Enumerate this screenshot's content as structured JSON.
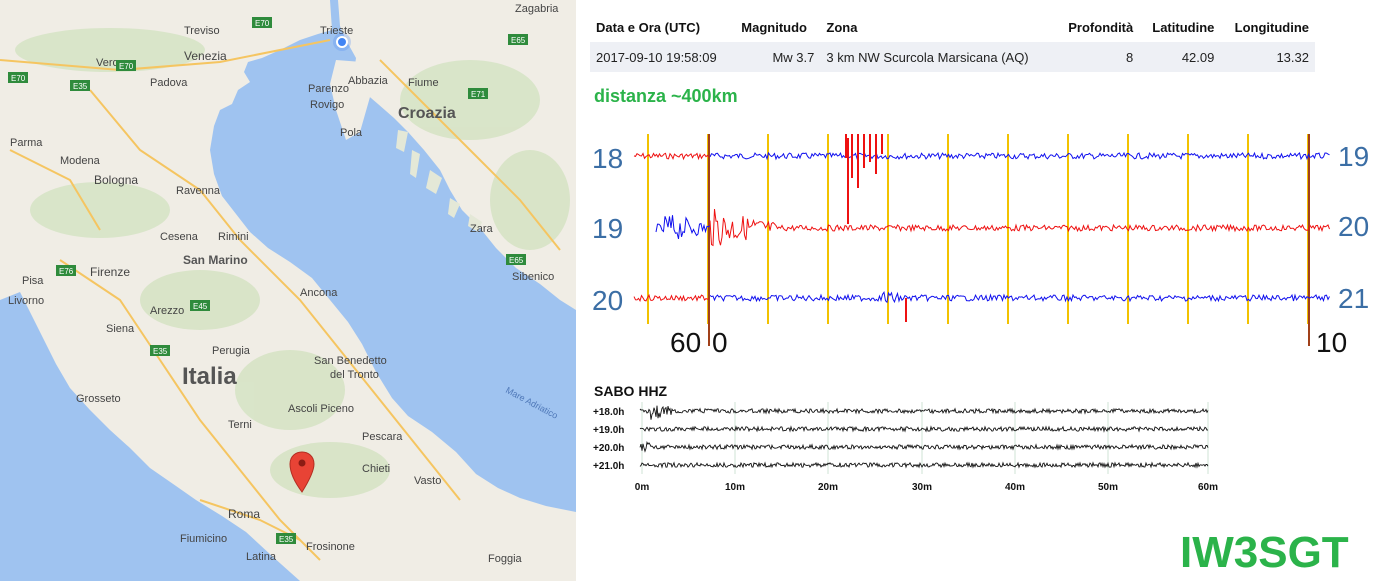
{
  "map": {
    "water_color": "#9fc3f0",
    "land_color": "#f0ede5",
    "labels": {
      "trieste": "Trieste",
      "zagabria": "Zagabria",
      "treviso": "Treviso",
      "venezia": "Venezia",
      "verona": "Verona",
      "padova": "Padova",
      "rovigo": "Rovigo",
      "parenzo": "Parenzo",
      "abbazia": "Abbazia",
      "fiume": "Fiume",
      "pola": "Pola",
      "croazia": "Croazia",
      "parma": "Parma",
      "modena": "Modena",
      "bologna": "Bologna",
      "ravenna": "Ravenna",
      "rimini": "Rimini",
      "cesena": "Cesena",
      "san_marino": "San Marino",
      "zara": "Zara",
      "pisa": "Pisa",
      "firenze": "Firenze",
      "livorno": "Livorno",
      "arezzo": "Arezzo",
      "siena": "Siena",
      "ancona": "Ancona",
      "sibenico": "Sibenico",
      "italia": "Italia",
      "san_benedetto": "San Benedetto",
      "del_tronto": "del Tronto",
      "mare_adriatico": "Mare Adriatico",
      "grosseto": "Grosseto",
      "perugia": "Perugia",
      "ascoli": "Ascoli Piceno",
      "terni": "Terni",
      "pescara": "Pescara",
      "chieti": "Chieti",
      "vasto": "Vasto",
      "roma": "Roma",
      "fiumicino": "Fiumicino",
      "latina": "Latina",
      "frosinone": "Frosinone",
      "foggia": "Foggia"
    },
    "roads": {
      "e70a": "E70",
      "e70b": "E70",
      "e35a": "E35",
      "e35b": "E35",
      "e35c": "E35",
      "e65a": "E65",
      "e65b": "E65",
      "e71": "E71",
      "e76": "E76",
      "e45": "E45",
      "e70c": "E70"
    }
  },
  "table": {
    "headers": [
      "Data e Ora (UTC)",
      "Magnitudo",
      "Zona",
      "Profondità",
      "Latitudine",
      "Longitudine"
    ],
    "row": [
      "2017-09-10 19:58:09",
      "Mw 3.7",
      "3 km NW Scurcola Marsicana (AQ)",
      "8",
      "42.09",
      "13.32"
    ]
  },
  "distance": "distanza ~400km",
  "seismogram": {
    "left_labels": [
      "18",
      "19",
      "20"
    ],
    "right_labels": [
      "19",
      "20",
      "21"
    ],
    "bottom_left": "60",
    "bottom_mid": "0",
    "bottom_right": "10",
    "colors": {
      "red": "#ee1111",
      "blue": "#1111ee",
      "grid": "#f2c200",
      "label": "#3b6ea5",
      "event": "#a0401a"
    }
  },
  "helicorder": {
    "title": "SABO HHZ",
    "rows": [
      "+18.0h",
      "+19.0h",
      "+20.0h",
      "+21.0h"
    ],
    "ticks": [
      "0m",
      "10m",
      "20m",
      "30m",
      "40m",
      "50m",
      "60m"
    ]
  },
  "signature": "IW3SGT"
}
